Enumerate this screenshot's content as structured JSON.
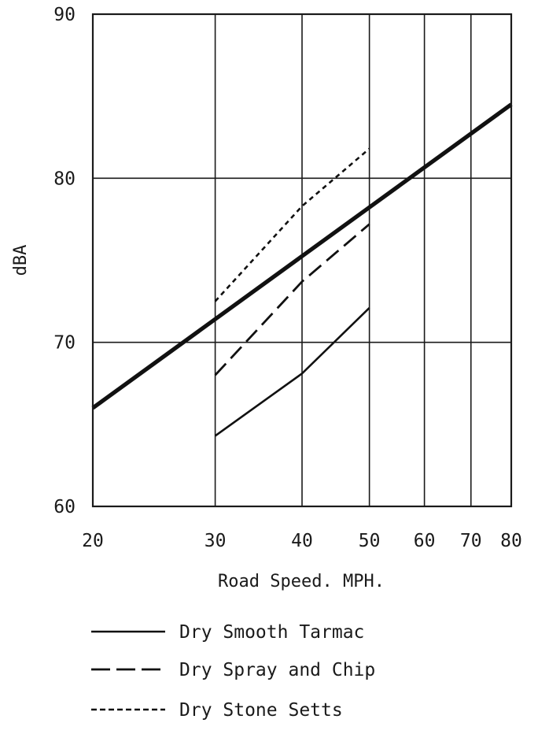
{
  "chart_data": {
    "type": "line",
    "x_scale": "log",
    "ylabel": "dBA",
    "xlabel": "Road Speed. MPH.",
    "xlim": [
      20,
      80
    ],
    "ylim": [
      60,
      90
    ],
    "x_ticks": [
      20,
      30,
      40,
      50,
      60,
      70,
      80
    ],
    "x_tick_labels": [
      "20",
      "30",
      "40",
      "50",
      "60",
      "70",
      "80"
    ],
    "y_ticks": [
      60,
      70,
      80,
      90
    ],
    "y_tick_labels": [
      "60",
      "70",
      "80",
      "90"
    ],
    "grid": true,
    "legend_position": "bottom",
    "series": [
      {
        "name": "",
        "line_style": "bold-solid",
        "x": [
          20,
          80
        ],
        "y": [
          66.0,
          84.5
        ]
      },
      {
        "name": "Dry Smooth Tarmac",
        "line_style": "solid",
        "x": [
          30,
          40,
          50
        ],
        "y": [
          64.3,
          68.1,
          72.1
        ]
      },
      {
        "name": "Dry Spray and Chip",
        "line_style": "dashed",
        "x": [
          30,
          40,
          50
        ],
        "y": [
          68.0,
          73.7,
          77.2
        ]
      },
      {
        "name": "Dry Stone Setts",
        "line_style": "dotted",
        "x": [
          30,
          40,
          50
        ],
        "y": [
          72.5,
          78.3,
          81.8
        ]
      }
    ],
    "legend": [
      "Dry Smooth Tarmac",
      "Dry Spray and Chip",
      "Dry Stone Setts"
    ]
  }
}
